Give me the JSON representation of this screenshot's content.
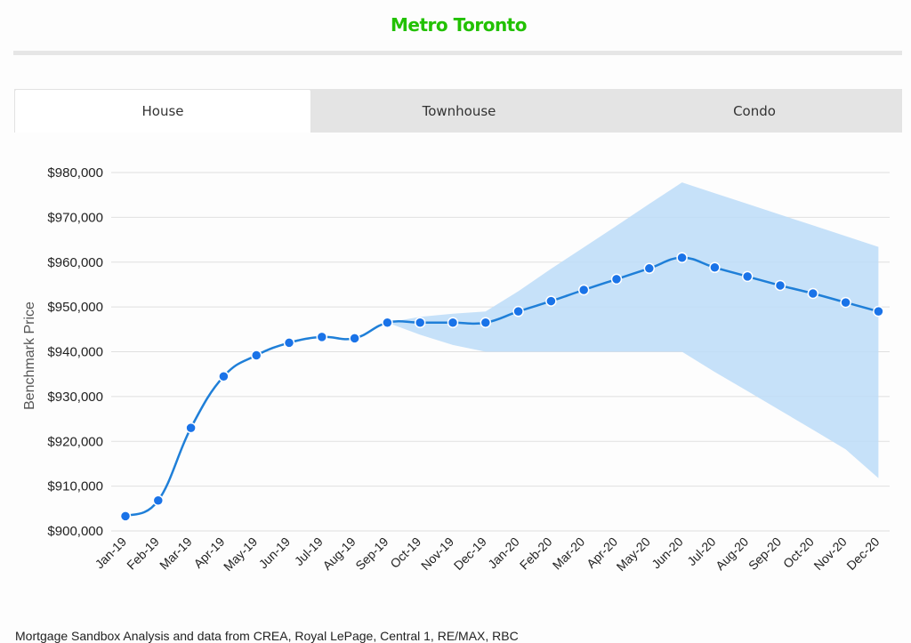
{
  "page": {
    "title": "Metro Toronto",
    "footer": "Mortgage Sandbox Analysis and data from CREA, Royal LePage, Central 1, RE/MAX, RBC"
  },
  "tabs": [
    {
      "label": "House",
      "active": true
    },
    {
      "label": "Townhouse",
      "active": false
    },
    {
      "label": "Condo",
      "active": false
    }
  ],
  "colors": {
    "title": "#22c100",
    "line": "#1f7fd8",
    "point": "#1a73e8",
    "band": "#bcdcf8",
    "grid": "#e0e0e0"
  },
  "chart_data": {
    "type": "line",
    "title": "",
    "xlabel": "",
    "ylabel": "Benchmark Price",
    "ylim": [
      900000,
      980000
    ],
    "yticks": [
      "$900,000",
      "$910,000",
      "$920,000",
      "$930,000",
      "$940,000",
      "$950,000",
      "$960,000",
      "$970,000",
      "$980,000"
    ],
    "ytick_values": [
      900000,
      910000,
      920000,
      930000,
      940000,
      950000,
      960000,
      970000,
      980000
    ],
    "grid": true,
    "legend": "none",
    "categories": [
      "Jan-19",
      "Feb-19",
      "Mar-19",
      "Apr-19",
      "May-19",
      "Jun-19",
      "Jul-19",
      "Aug-19",
      "Sep-19",
      "Oct-19",
      "Nov-19",
      "Dec-19",
      "Jan-20",
      "Feb-20",
      "Mar-20",
      "Apr-20",
      "May-20",
      "Jun-20",
      "Jul-20",
      "Aug-20",
      "Sep-20",
      "Oct-20",
      "Nov-20",
      "Dec-20"
    ],
    "series": [
      {
        "values": [
          903300,
          906800,
          923000,
          934500,
          939200,
          942000,
          943300,
          943000,
          946500,
          946500,
          946500,
          946500,
          949000,
          951300,
          953800,
          956200,
          958600,
          961000,
          958800,
          956800,
          954800,
          953000,
          951000,
          949000
        ]
      }
    ],
    "range_band": {
      "upper": [
        null,
        null,
        null,
        null,
        null,
        null,
        null,
        null,
        946500,
        947800,
        948500,
        949000,
        953500,
        958500,
        963300,
        968100,
        973000,
        977800,
        975400,
        973000,
        970600,
        968200,
        965800,
        963400
      ],
      "lower": [
        null,
        null,
        null,
        null,
        null,
        null,
        null,
        null,
        946500,
        943800,
        941500,
        940000,
        940000,
        940000,
        940000,
        940000,
        940000,
        940000,
        935500,
        931200,
        926900,
        922600,
        918200,
        911800
      ]
    }
  }
}
